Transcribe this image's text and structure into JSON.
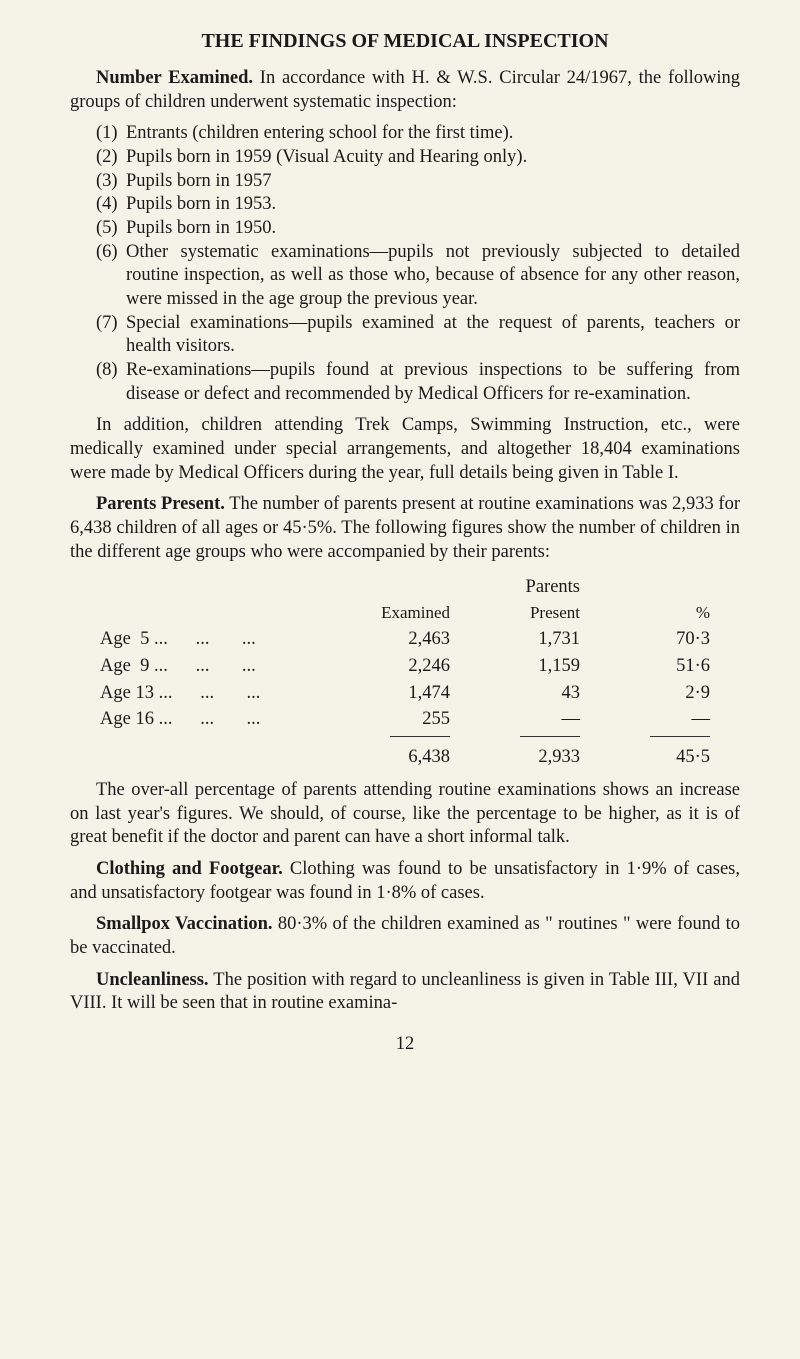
{
  "title": "THE FINDINGS OF MEDICAL INSPECTION",
  "p1_lead": "Number Examined.",
  "p1_text": " In accordance with H. & W.S. Circular 24/1967, the following groups of children underwent systematic inspection:",
  "list": {
    "n1": "(1)",
    "t1": "Entrants (children entering school for the first time).",
    "n2": "(2)",
    "t2": "Pupils born in 1959 (Visual Acuity and Hearing only).",
    "n3": "(3)",
    "t3": "Pupils born in 1957",
    "n4": "(4)",
    "t4": "Pupils born in 1953.",
    "n5": "(5)",
    "t5": "Pupils born in 1950.",
    "n6": "(6)",
    "t6": "Other systematic examinations—pupils not previously subjected to detailed routine inspection, as well as those who, because of absence for any other reason, were missed in the age group the previous year.",
    "n7": "(7)",
    "t7": "Special examinations—pupils examined at the request of parents, teachers or health visitors.",
    "n8": "(8)",
    "t8": "Re-examinations—pupils found at previous inspections to be suffering from disease or defect and recommended by Medical Officers for re-examination."
  },
  "p2": "In addition, children attending Trek Camps, Swimming Instruction, etc., were medically examined under special arrangements, and altogether 18,404 examinations were made by Medical Officers during the year, full details being given in Table I.",
  "p3_lead": "Parents Present.",
  "p3_text": " The number of parents present at routine examinations was 2,933 for 6,438 children of all ages or 45·5%. The following figures show the number of children in the different age groups who were accompanied by their parents:",
  "table": {
    "h_examined": "Examined",
    "h_present_top": "Parents",
    "h_present": "Present",
    "h_pct": "%",
    "rows": [
      {
        "label": "Age  5 ...      ...       ...",
        "examined": "2,463",
        "present": "1,731",
        "pct": "70·3"
      },
      {
        "label": "Age  9 ...      ...       ...",
        "examined": "2,246",
        "present": "1,159",
        "pct": "51·6"
      },
      {
        "label": "Age 13 ...      ...       ...",
        "examined": "1,474",
        "present": "43",
        "pct": "2·9"
      },
      {
        "label": "Age 16 ...      ...       ...",
        "examined": "255",
        "present": "—",
        "pct": "—"
      }
    ],
    "total": {
      "examined": "6,438",
      "present": "2,933",
      "pct": "45·5"
    }
  },
  "p4": "The over-all percentage of parents attending routine examinations shows an increase on last year's figures. We should, of course, like the percentage to be higher, as it is of great benefit if the doctor and parent can have a short informal talk.",
  "p5_lead": "Clothing and Footgear.",
  "p5_text": " Clothing was found to be unsatisfactory in 1·9% of cases, and unsatisfactory footgear was found in 1·8% of cases.",
  "p6_lead": "Smallpox Vaccination.",
  "p6_text": " 80·3% of the children examined as \" routines \" were found to be vaccinated.",
  "p7_lead": "Uncleanliness.",
  "p7_text": " The position with regard to uncleanliness is given in Table III, VII and VIII. It will be seen that in routine examina-",
  "page_number": "12"
}
